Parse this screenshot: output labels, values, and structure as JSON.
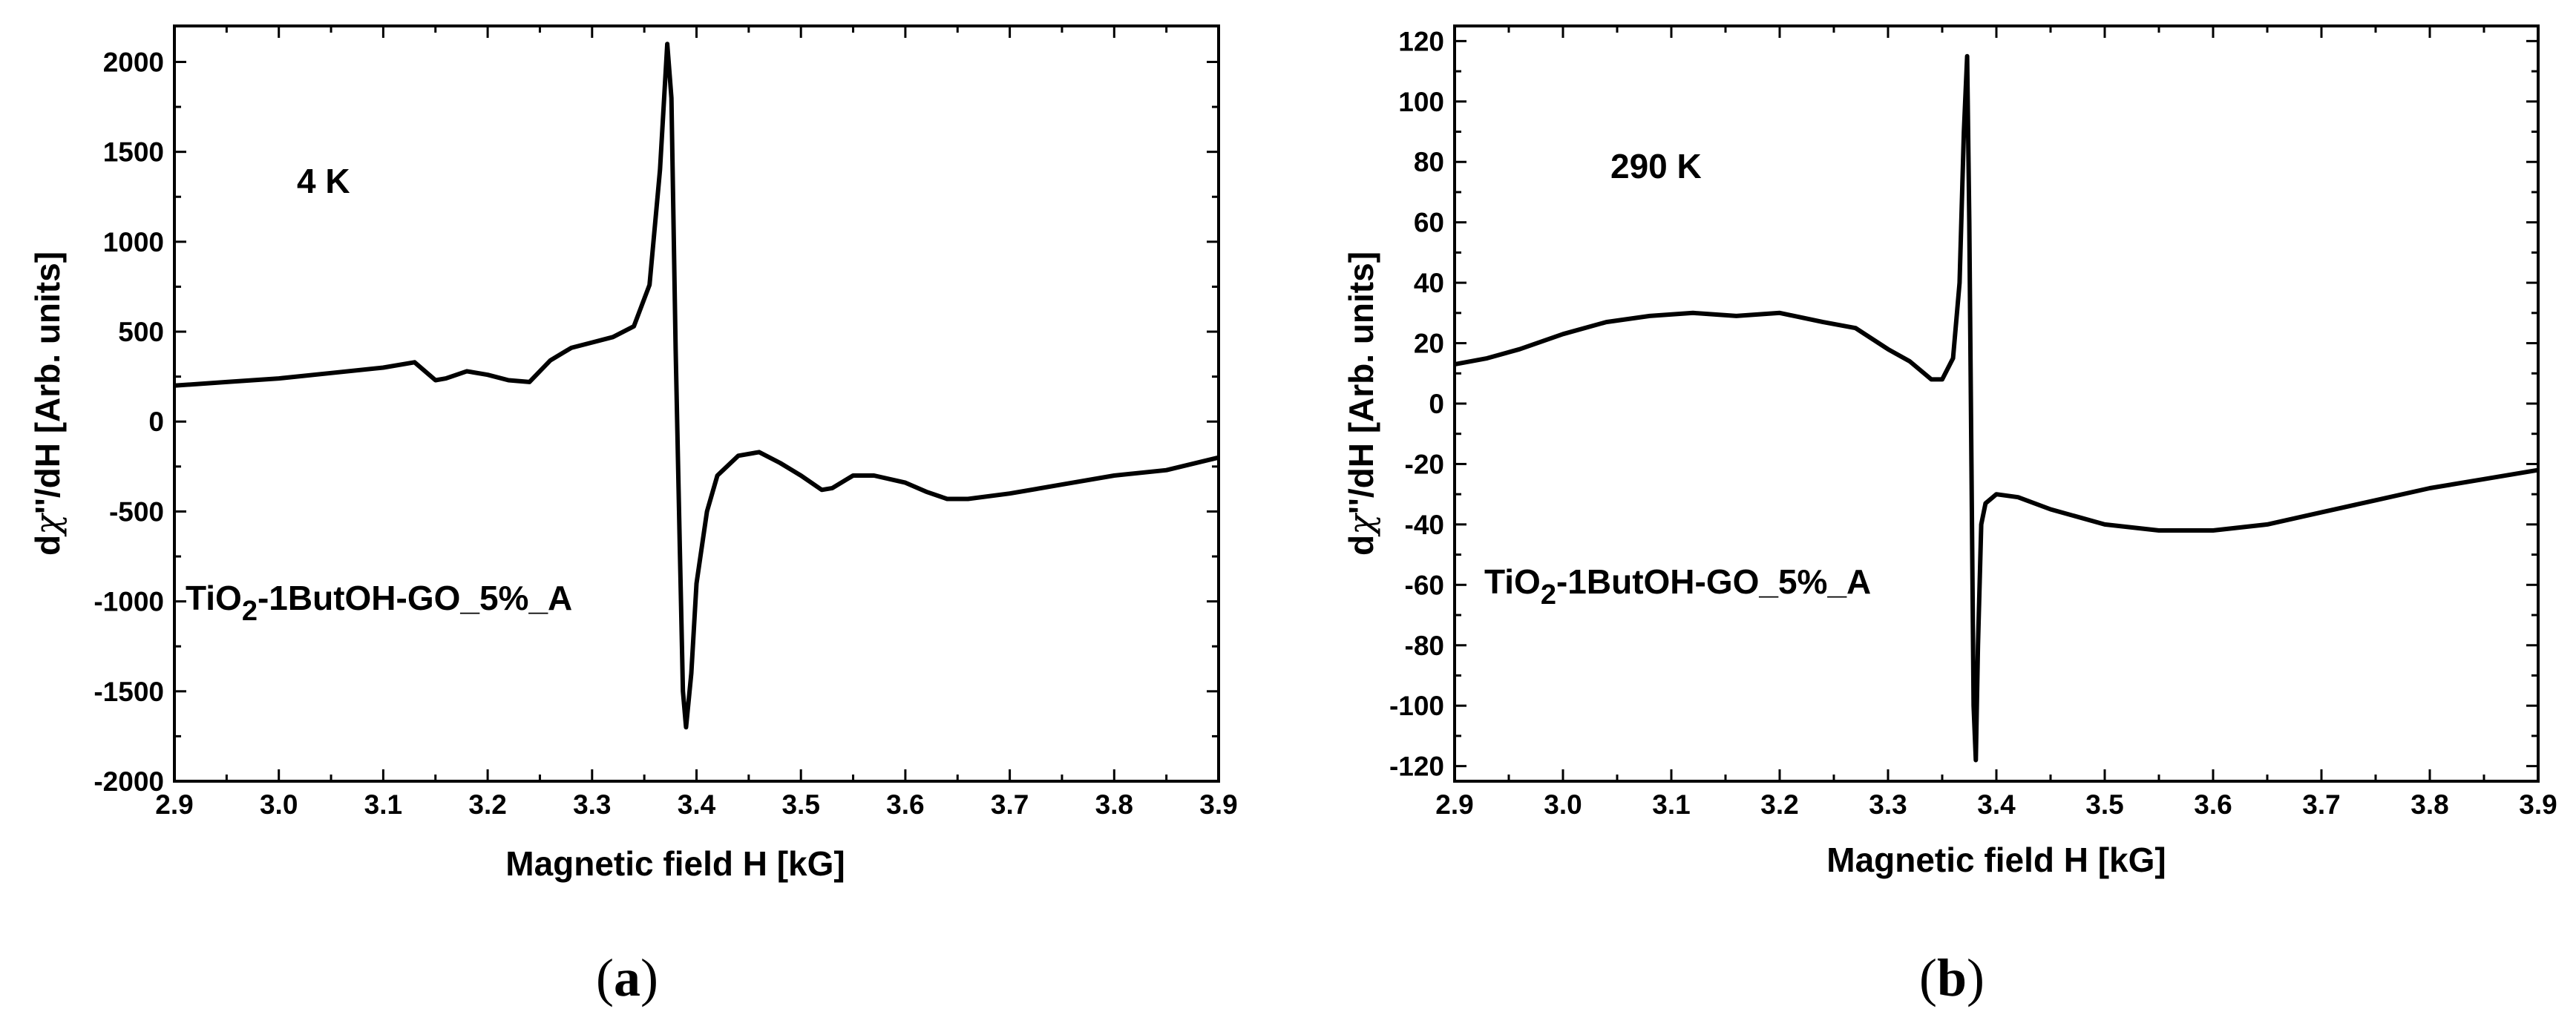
{
  "chart_data": [
    {
      "type": "line",
      "panel_label": "a",
      "annotation": "4 K",
      "sample_label": {
        "prefix": "TiO",
        "subscript": "2",
        "suffix": "-1ButOH-GO_5%_A"
      },
      "xlabel": "Magnetic field H [kG]",
      "ylabel": {
        "prefix": "d",
        "symbol": "χ",
        "suffix": "''/dH [Arb. units]"
      },
      "xlim": [
        2.9,
        3.9
      ],
      "ylim": [
        -2000,
        2200
      ],
      "xticks": [
        "2.9",
        "3.0",
        "3.1",
        "3.2",
        "3.3",
        "3.4",
        "3.5",
        "3.6",
        "3.7",
        "3.8",
        "3.9"
      ],
      "yticks": [
        "-2000",
        "-1500",
        "-1000",
        "-500",
        "0",
        "500",
        "1000",
        "1500",
        "2000"
      ],
      "series": [
        {
          "name": "TiO2-1ButOH-GO_5%_A (4 K)",
          "x": [
            2.9,
            2.95,
            3.0,
            3.05,
            3.1,
            3.13,
            3.15,
            3.16,
            3.18,
            3.2,
            3.22,
            3.24,
            3.26,
            3.28,
            3.3,
            3.32,
            3.34,
            3.355,
            3.365,
            3.372,
            3.376,
            3.38,
            3.384,
            3.387,
            3.39,
            3.395,
            3.4,
            3.41,
            3.42,
            3.44,
            3.46,
            3.48,
            3.5,
            3.52,
            3.53,
            3.55,
            3.57,
            3.6,
            3.62,
            3.64,
            3.66,
            3.7,
            3.75,
            3.8,
            3.85,
            3.9
          ],
          "y": [
            200,
            220,
            240,
            270,
            300,
            330,
            230,
            240,
            280,
            260,
            230,
            220,
            340,
            410,
            440,
            470,
            530,
            760,
            1400,
            2100,
            1800,
            400,
            -700,
            -1500,
            -1700,
            -1400,
            -900,
            -500,
            -300,
            -190,
            -170,
            -230,
            -300,
            -380,
            -370,
            -300,
            -300,
            -340,
            -390,
            -430,
            -430,
            -400,
            -350,
            -300,
            -270,
            -200
          ]
        }
      ]
    },
    {
      "type": "line",
      "panel_label": "b",
      "annotation": "290 K",
      "sample_label": {
        "prefix": "TiO",
        "subscript": "2",
        "suffix": "-1ButOH-GO_5%_A"
      },
      "xlabel": "Magnetic field H [kG]",
      "ylabel": {
        "prefix": "d",
        "symbol": "χ",
        "suffix": "''/dH [Arb. units]"
      },
      "xlim": [
        2.9,
        3.9
      ],
      "ylim": [
        -125,
        125
      ],
      "xticks": [
        "2.9",
        "3.0",
        "3.1",
        "3.2",
        "3.3",
        "3.4",
        "3.5",
        "3.6",
        "3.7",
        "3.8",
        "3.9"
      ],
      "yticks": [
        "-120",
        "-100",
        "-80",
        "-60",
        "-40",
        "-20",
        "0",
        "20",
        "40",
        "60",
        "80",
        "100",
        "120"
      ],
      "series": [
        {
          "name": "TiO2-1ButOH-GO_5%_A (290 K)",
          "x": [
            2.9,
            2.93,
            2.96,
            3.0,
            3.04,
            3.08,
            3.12,
            3.16,
            3.2,
            3.24,
            3.27,
            3.3,
            3.32,
            3.34,
            3.35,
            3.36,
            3.366,
            3.37,
            3.373,
            3.375,
            3.377,
            3.379,
            3.381,
            3.383,
            3.386,
            3.39,
            3.4,
            3.42,
            3.45,
            3.5,
            3.55,
            3.6,
            3.65,
            3.7,
            3.75,
            3.8,
            3.85,
            3.9
          ],
          "y": [
            13,
            15,
            18,
            23,
            27,
            29,
            30,
            29,
            30,
            27,
            25,
            18,
            14,
            8,
            8,
            15,
            40,
            90,
            115,
            60,
            -20,
            -100,
            -118,
            -80,
            -40,
            -33,
            -30,
            -31,
            -35,
            -40,
            -42,
            -42,
            -40,
            -36,
            -32,
            -28,
            -25,
            -22
          ]
        }
      ]
    }
  ]
}
